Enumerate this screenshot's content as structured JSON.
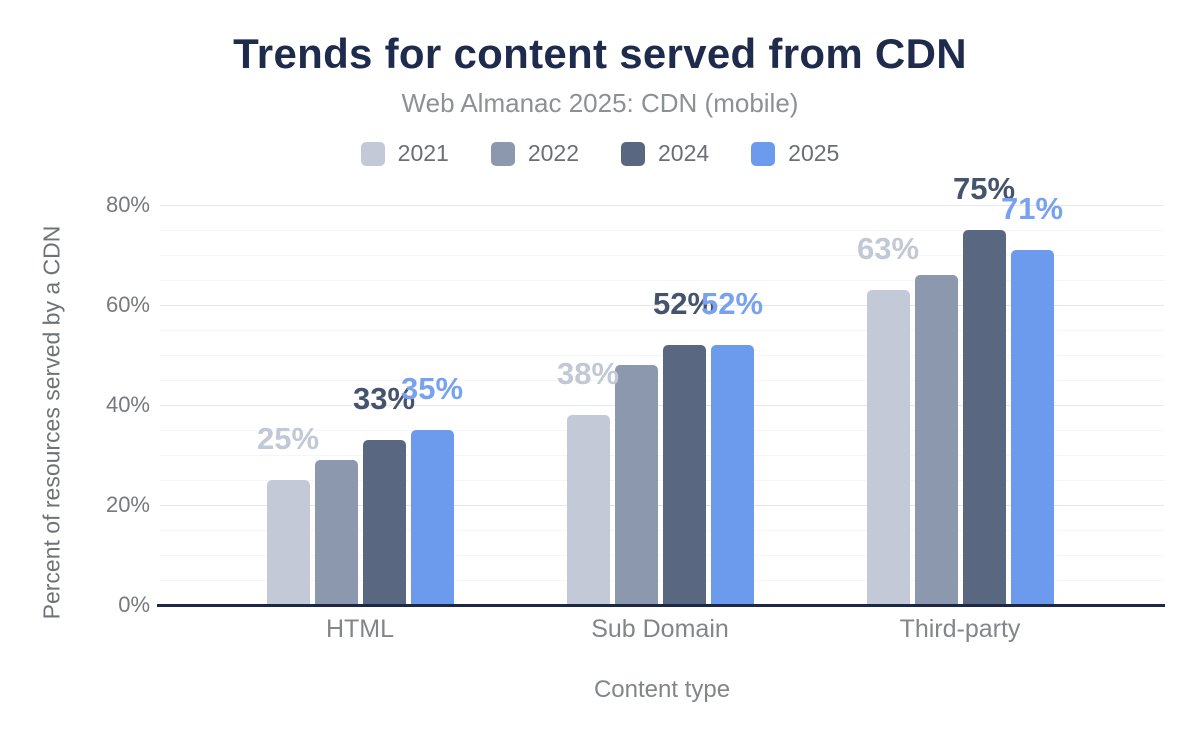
{
  "title": "Trends for content served from CDN",
  "subtitle": "Web Almanac 2025: CDN (mobile)",
  "colors": {
    "title_text": "#1f2b4c",
    "subtitle_text": "#8d9095",
    "axis_line": "#1c2946",
    "tick_text": "#76797e",
    "category_text": "#82868b",
    "grid_major": "#e5e7ea",
    "grid_minor": "#f5f6f7",
    "series_2021": "#c3c9d6",
    "series_2022": "#8c98ae",
    "series_2024": "#5a6780",
    "series_2025": "#6c9aec"
  },
  "chart_data": {
    "type": "bar",
    "title": "Trends for content served from CDN",
    "subtitle": "Web Almanac 2025: CDN (mobile)",
    "categories": [
      "HTML",
      "Sub Domain",
      "Third-party"
    ],
    "series": [
      {
        "name": "2021",
        "color": "#c3c9d6",
        "label_color": "#c2c8d6",
        "values": [
          25,
          38,
          63
        ],
        "labels": [
          "25%",
          "38%",
          "63%"
        ],
        "show_labels": true
      },
      {
        "name": "2022",
        "color": "#8c98ae",
        "label_color": "#8c98ae",
        "values": [
          29,
          48,
          66
        ],
        "labels": [],
        "show_labels": false
      },
      {
        "name": "2024",
        "color": "#5a6780",
        "label_color": "#46536d",
        "values": [
          33,
          52,
          75
        ],
        "labels": [
          "33%",
          "52%",
          "75%"
        ],
        "show_labels": true
      },
      {
        "name": "2025",
        "color": "#6c9aec",
        "label_color": "#78a2f0",
        "values": [
          35,
          52,
          71
        ],
        "labels": [
          "35%",
          "52%",
          "71%"
        ],
        "show_labels": true
      }
    ],
    "xlabel": "Content type",
    "ylabel": "Percent of resources served by a CDN",
    "ylim": [
      0,
      80
    ],
    "yticks": [
      {
        "value": 0,
        "label": "0%"
      },
      {
        "value": 20,
        "label": "20%"
      },
      {
        "value": 40,
        "label": "40%"
      },
      {
        "value": 60,
        "label": "60%"
      },
      {
        "value": 80,
        "label": "80%"
      }
    ],
    "grid": "horizontal, minor every 5%, major every 20%",
    "legend_position": "top-center"
  }
}
